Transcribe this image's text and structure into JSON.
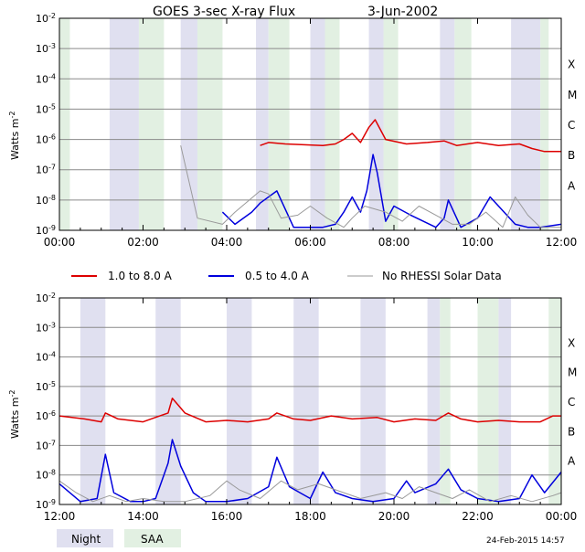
{
  "title": "GOES 3-sec X-ray Flux",
  "date": "3-Jun-2002",
  "ylabel": "Watts m",
  "ylabel_sup": "-2",
  "y_ticks": [
    "10-2",
    "10-3",
    "10-4",
    "10-5",
    "10-6",
    "10-7",
    "10-8",
    "10-9"
  ],
  "flare_classes": [
    "X",
    "M",
    "C",
    "B",
    "A"
  ],
  "legend": [
    {
      "label": "1.0 to 8.0 A",
      "color": "#dd0000"
    },
    {
      "label": "0.5 to 4.0 A",
      "color": "#0000dd"
    },
    {
      "label": "No RHESSI Solar Data",
      "color": "#999999"
    }
  ],
  "key": {
    "night": "Night",
    "saa": "SAA",
    "night_color": "#e0e0f0",
    "saa_color": "#e2f0e2"
  },
  "footer": "24-Feb-2015 14:57",
  "chart_data": [
    {
      "type": "line",
      "title": "GOES 3-sec X-ray Flux 3-Jun-2002 (00:00–12:00)",
      "x_ticks": [
        "00:00",
        "02:00",
        "04:00",
        "06:00",
        "08:00",
        "10:00",
        "12:00"
      ],
      "xlim": [
        0,
        12
      ],
      "ylim_log10": [
        -9,
        -2
      ],
      "night": [
        [
          1.2,
          1.9
        ],
        [
          2.9,
          3.3
        ],
        [
          4.7,
          5.0
        ],
        [
          6.0,
          6.35
        ],
        [
          7.4,
          7.75
        ],
        [
          9.1,
          9.45
        ],
        [
          10.8,
          11.5
        ]
      ],
      "saa": [
        [
          0.0,
          0.25
        ],
        [
          1.9,
          2.5
        ],
        [
          3.3,
          3.9
        ],
        [
          5.0,
          5.5
        ],
        [
          6.35,
          6.7
        ],
        [
          7.75,
          8.1
        ],
        [
          9.45,
          9.85
        ],
        [
          11.5,
          11.7
        ]
      ],
      "series": [
        {
          "name": "1.0 to 8.0 A",
          "color": "#dd0000",
          "x": [
            4.8,
            5.0,
            5.4,
            6.3,
            6.6,
            6.8,
            7.0,
            7.2,
            7.4,
            7.55,
            7.8,
            8.3,
            8.8,
            9.2,
            9.5,
            10.0,
            10.5,
            11.0,
            11.3,
            11.6,
            12.0
          ],
          "y": [
            -6.2,
            -6.1,
            -6.15,
            -6.2,
            -6.15,
            -6.0,
            -5.8,
            -6.1,
            -5.6,
            -5.35,
            -6.0,
            -6.15,
            -6.1,
            -6.05,
            -6.2,
            -6.1,
            -6.2,
            -6.15,
            -6.3,
            -6.4,
            -6.4
          ]
        },
        {
          "name": "0.5 to 4.0 A",
          "color": "#0000dd",
          "x": [
            3.9,
            4.2,
            4.6,
            4.8,
            5.2,
            5.6,
            6.3,
            6.6,
            6.8,
            7.0,
            7.2,
            7.35,
            7.5,
            7.6,
            7.8,
            8.0,
            8.4,
            9.0,
            9.2,
            9.3,
            9.6,
            10.0,
            10.3,
            10.5,
            10.7,
            10.9,
            11.2,
            11.5,
            12.0
          ],
          "y": [
            -8.4,
            -8.8,
            -8.4,
            -8.1,
            -7.7,
            -8.9,
            -8.9,
            -8.8,
            -8.4,
            -7.9,
            -8.4,
            -7.7,
            -6.5,
            -7.1,
            -8.7,
            -8.2,
            -8.5,
            -8.9,
            -8.6,
            -8.0,
            -8.9,
            -8.6,
            -7.9,
            -8.2,
            -8.5,
            -8.8,
            -8.9,
            -8.9,
            -8.8
          ]
        },
        {
          "name": "No RHESSI Solar Data",
          "color": "#999999",
          "x": [
            2.9,
            3.3,
            3.9,
            4.2,
            4.8,
            5.0,
            5.3,
            5.7,
            6.0,
            6.4,
            6.8,
            7.0,
            7.3,
            7.8,
            8.2,
            8.6,
            9.0,
            9.4,
            9.8,
            10.2,
            10.6,
            10.9,
            11.2,
            11.5,
            12.0
          ],
          "y": [
            -6.2,
            -8.6,
            -8.8,
            -8.4,
            -7.7,
            -7.8,
            -8.6,
            -8.5,
            -8.2,
            -8.6,
            -8.9,
            -8.6,
            -8.2,
            -8.4,
            -8.7,
            -8.2,
            -8.5,
            -8.8,
            -8.8,
            -8.4,
            -8.9,
            -7.9,
            -8.5,
            -8.9,
            -8.9
          ]
        }
      ]
    },
    {
      "type": "line",
      "title": "GOES 3-sec X-ray Flux 3-Jun-2002 (12:00–24:00)",
      "x_ticks": [
        "12:00",
        "14:00",
        "16:00",
        "18:00",
        "20:00",
        "22:00",
        "00:00"
      ],
      "xlim": [
        12,
        24
      ],
      "ylim_log10": [
        -9,
        -2
      ],
      "night": [
        [
          12.5,
          13.1
        ],
        [
          14.3,
          14.9
        ],
        [
          16.0,
          16.6
        ],
        [
          17.6,
          18.2
        ],
        [
          19.2,
          19.8
        ],
        [
          20.8,
          21.1
        ],
        [
          22.5,
          22.8
        ]
      ],
      "saa": [
        [
          21.1,
          21.35
        ],
        [
          22.0,
          22.5
        ],
        [
          23.7,
          24.0
        ]
      ],
      "series": [
        {
          "name": "1.0 to 8.0 A",
          "color": "#dd0000",
          "x": [
            12.0,
            12.6,
            13.0,
            13.1,
            13.4,
            14.0,
            14.4,
            14.6,
            14.7,
            15.0,
            15.5,
            16.0,
            16.5,
            17.0,
            17.2,
            17.6,
            18.0,
            18.5,
            19.0,
            19.6,
            20.0,
            20.5,
            21.0,
            21.3,
            21.6,
            22.0,
            22.5,
            23.0,
            23.5,
            23.8,
            24.0
          ],
          "y": [
            -6.0,
            -6.1,
            -6.2,
            -5.9,
            -6.1,
            -6.2,
            -6.0,
            -5.9,
            -5.4,
            -5.9,
            -6.2,
            -6.15,
            -6.2,
            -6.1,
            -5.9,
            -6.1,
            -6.15,
            -6.0,
            -6.1,
            -6.05,
            -6.2,
            -6.1,
            -6.15,
            -5.9,
            -6.1,
            -6.2,
            -6.15,
            -6.2,
            -6.2,
            -6.0,
            -6.0
          ]
        },
        {
          "name": "0.5 to 4.0 A",
          "color": "#0000dd",
          "x": [
            12.0,
            12.5,
            12.9,
            13.1,
            13.3,
            13.7,
            14.0,
            14.3,
            14.6,
            14.7,
            14.9,
            15.2,
            15.5,
            16.0,
            16.5,
            17.0,
            17.2,
            17.5,
            18.0,
            18.3,
            18.6,
            19.0,
            19.5,
            20.0,
            20.3,
            20.5,
            21.0,
            21.3,
            21.6,
            22.0,
            22.5,
            23.0,
            23.3,
            23.6,
            24.0
          ],
          "y": [
            -8.3,
            -8.9,
            -8.8,
            -7.3,
            -8.6,
            -8.9,
            -8.9,
            -8.8,
            -7.6,
            -6.8,
            -7.7,
            -8.6,
            -8.9,
            -8.9,
            -8.8,
            -8.4,
            -7.4,
            -8.4,
            -8.8,
            -7.9,
            -8.6,
            -8.8,
            -8.9,
            -8.8,
            -8.2,
            -8.6,
            -8.3,
            -7.8,
            -8.5,
            -8.8,
            -8.9,
            -8.8,
            -8.0,
            -8.6,
            -7.9
          ]
        },
        {
          "name": "No RHESSI Solar Data",
          "color": "#999999",
          "x": [
            12.0,
            12.4,
            12.8,
            13.2,
            13.6,
            14.0,
            14.5,
            15.0,
            15.6,
            16.0,
            16.3,
            16.8,
            17.3,
            17.7,
            18.2,
            18.8,
            19.2,
            19.8,
            20.2,
            20.6,
            21.0,
            21.4,
            21.8,
            22.3,
            22.8,
            23.3,
            23.8,
            24.0
          ],
          "y": [
            -8.2,
            -8.6,
            -8.9,
            -8.7,
            -8.9,
            -8.8,
            -8.9,
            -8.9,
            -8.7,
            -8.2,
            -8.5,
            -8.8,
            -8.2,
            -8.5,
            -8.3,
            -8.6,
            -8.8,
            -8.6,
            -8.8,
            -8.4,
            -8.6,
            -8.8,
            -8.5,
            -8.9,
            -8.7,
            -8.9,
            -8.7,
            -8.6
          ]
        }
      ]
    }
  ]
}
